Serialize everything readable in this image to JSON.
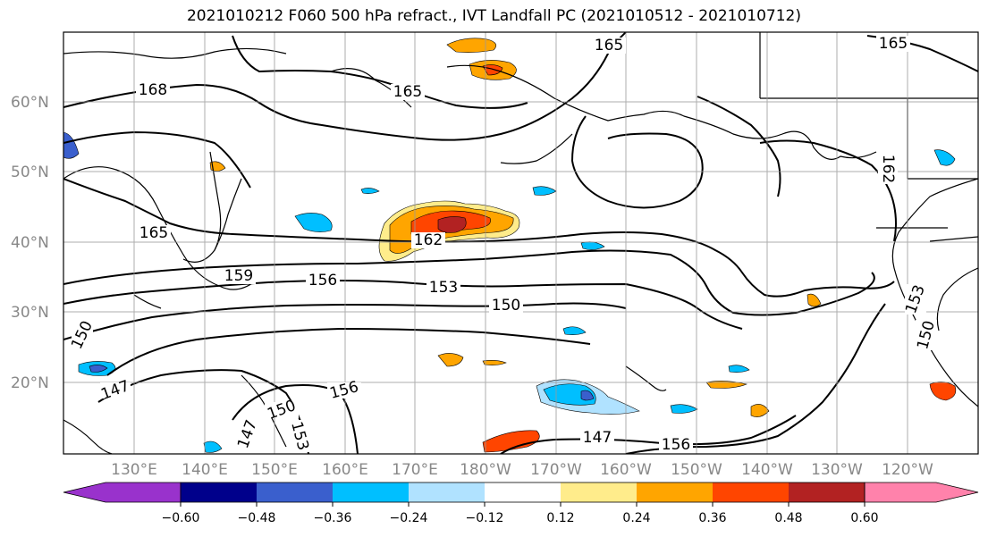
{
  "title": "2021010212 F060 500 hPa refract., IVT Landfall PC (2021010512 - 2021010712)",
  "lat_labels": [
    "60°N",
    "50°N",
    "40°N",
    "30°N",
    "20°N"
  ],
  "lon_labels": [
    "130°E",
    "140°E",
    "150°E",
    "160°E",
    "170°E",
    "180°W",
    "170°W",
    "160°W",
    "150°W",
    "140°W",
    "130°W",
    "120°W"
  ],
  "contour_labels": [
    "168",
    "165",
    "165",
    "165",
    "162",
    "165",
    "159",
    "156",
    "153",
    "150",
    "150",
    "147",
    "150",
    "156",
    "153",
    "147",
    "147",
    "156",
    "150",
    "153",
    "162"
  ],
  "colorbar": {
    "tick_labels": [
      "−0.60",
      "−0.48",
      "−0.36",
      "−0.24",
      "−0.12",
      "0.12",
      "0.24",
      "0.36",
      "0.48",
      "0.60"
    ],
    "colors": [
      "#9932cc",
      "#00008b",
      "#3a5fcd",
      "#00bfff",
      "#b0e2ff",
      "#ffffff",
      "#ffec8b",
      "#ffa500",
      "#ff4500",
      "#b22222",
      "#ff82ab"
    ]
  }
}
